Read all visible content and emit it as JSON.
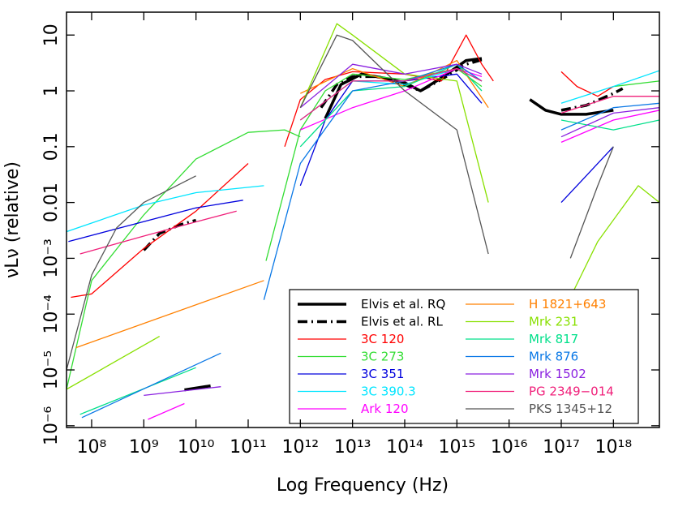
{
  "chart_data": {
    "type": "line",
    "log_x": true,
    "log_y": true,
    "x_label": "Log Frequency (Hz)",
    "y_label": "νLν (relative)",
    "xlim": [
      33000000.0,
      7.6e+18
    ],
    "ylim": [
      9.3e-07,
      25.7
    ],
    "xticks": [
      {
        "value": 100000000.0,
        "label": "10⁸"
      },
      {
        "value": 1000000000.0,
        "label": "10⁹"
      },
      {
        "value": 10000000000.0,
        "label": "10¹⁰"
      },
      {
        "value": 100000000000.0,
        "label": "10¹¹"
      },
      {
        "value": 1000000000000.0,
        "label": "10¹²"
      },
      {
        "value": 10000000000000.0,
        "label": "10¹³"
      },
      {
        "value": 100000000000000.0,
        "label": "10¹⁴"
      },
      {
        "value": 1000000000000000.0,
        "label": "10¹⁵"
      },
      {
        "value": 1e+16,
        "label": "10¹⁶"
      },
      {
        "value": 1e+17,
        "label": "10¹⁷"
      },
      {
        "value": 1e+18,
        "label": "10¹⁸"
      }
    ],
    "yticks": [
      {
        "value": 1e-06,
        "label": "10⁻⁶"
      },
      {
        "value": 1e-05,
        "label": "10⁻⁵"
      },
      {
        "value": 0.0001,
        "label": "10⁻⁴"
      },
      {
        "value": 0.001,
        "label": "10⁻³"
      },
      0.01,
      0.1,
      1,
      10
    ],
    "series": [
      {
        "name": "Elvis et al. RQ",
        "color": "#000000",
        "width": 3.5,
        "style": "solid",
        "x": [
          6000000000.0,
          19000000000.0,
          null,
          3000000000000.0,
          6000000000000.0,
          15000000000000.0,
          40000000000000.0,
          100000000000000.0,
          200000000000000.0,
          500000000000000.0,
          1500000000000000.0,
          3000000000000000.0,
          null,
          2.5e+16,
          5e+16,
          1e+17,
          3e+17,
          1e+18
        ],
        "values": [
          4.4e-06,
          5.2e-06,
          null,
          0.32,
          1.3,
          2,
          1.7,
          1.4,
          1.0,
          1.7,
          3.5,
          3.8,
          null,
          0.7,
          0.45,
          0.38,
          0.38,
          0.45
        ]
      },
      {
        "name": "Elvis et al. RL",
        "color": "#000000",
        "width": 3.5,
        "style": "dashdot",
        "x": [
          1000000000.0,
          2000000000.0,
          5000000000.0,
          10000000000.0,
          null,
          2500000000000.0,
          5000000000000.0,
          10000000000000.0,
          30000000000000.0,
          100000000000000.0,
          200000000000000.0,
          500000000000000.0,
          1500000000000000.0,
          3000000000000000.0,
          null,
          1e+17,
          3e+17,
          1e+18,
          1.5e+18
        ],
        "values": [
          0.0014,
          0.0028,
          0.004,
          0.0048,
          null,
          0.5,
          1.3,
          1.8,
          1.8,
          1.3,
          1.0,
          1.6,
          3,
          3.6,
          null,
          0.45,
          0.55,
          0.9,
          1.1
        ]
      },
      {
        "name": "3C 120",
        "color": "#ff0000",
        "width": 1.3,
        "style": "solid",
        "x": [
          40000000.0,
          100000000.0,
          1000000000.0,
          10000000000.0,
          100000000000.0,
          null,
          500000000000.0,
          1000000000000.0,
          3000000000000.0,
          10000000000000.0,
          100000000000000.0,
          500000000000000.0,
          1500000000000000.0,
          3000000000000000.0,
          5000000000000000.0,
          null,
          1e+17,
          2e+17,
          5e+17,
          1e+18
        ],
        "values": [
          0.0002,
          0.00023,
          0.0015,
          0.007,
          0.05,
          null,
          0.1,
          0.7,
          1.6,
          2.2,
          2.0,
          1.5,
          10,
          3,
          1.5,
          null,
          2.2,
          1.2,
          0.8,
          1.2
        ]
      },
      {
        "name": "3C 273",
        "color": "#33dd33",
        "width": 1.3,
        "style": "solid",
        "x": [
          33000000.0,
          100000000.0,
          1000000000.0,
          10000000000.0,
          100000000000.0,
          500000000000.0,
          1000000000000.0,
          null,
          220000000000.0,
          1000000000000.0,
          3000000000000.0,
          10000000000000.0,
          100000000000000.0,
          1000000000000000.0,
          3000000000000000.0,
          null,
          1e+18,
          7.6e+18
        ],
        "values": [
          4.5e-06,
          0.0004,
          0.006,
          0.06,
          0.18,
          0.2,
          0.15,
          null,
          0.0009,
          0.2,
          1.0,
          2.0,
          1.6,
          2.5,
          1.2,
          null,
          1.2,
          1.5
        ]
      },
      {
        "name": "3C 351",
        "color": "#0000dd",
        "width": 1.3,
        "style": "solid",
        "x": [
          36000000.0,
          10000000000.0,
          80000000000.0,
          null,
          1000000000000.0,
          3000000000000.0,
          10000000000000.0,
          100000000000000.0,
          1000000000000000.0,
          3000000000000000.0,
          null,
          1e+17,
          3e+17,
          1e+18
        ],
        "values": [
          0.002,
          0.008,
          0.011,
          null,
          0.02,
          0.3,
          1.5,
          1.5,
          2,
          0.6,
          null,
          0.01,
          0.03,
          0.1
        ]
      },
      {
        "name": "3C 390.3",
        "color": "#00e5ff",
        "width": 1.3,
        "style": "solid",
        "x": [
          33000000.0,
          1000000000.0,
          10000000000.0,
          200000000000.0,
          null,
          1000000000000.0,
          10000000000000.0,
          100000000000000.0,
          1000000000000000.0,
          3000000000000000.0,
          null,
          1e+17,
          1e+18,
          7.6e+18
        ],
        "values": [
          0.003,
          0.009,
          0.015,
          0.02,
          null,
          0.3,
          1.5,
          1.3,
          2.5,
          1.5,
          null,
          0.6,
          1.2,
          2.3
        ]
      },
      {
        "name": "Ark 120",
        "color": "#ff00ff",
        "width": 1.3,
        "style": "solid",
        "x": [
          1200000000.0,
          6000000000.0,
          null,
          1000000000000.0,
          10000000000000.0,
          100000000000000.0,
          1000000000000000.0,
          3000000000000000.0,
          null,
          1e+17,
          1e+18,
          7.6e+18
        ],
        "values": [
          1.3e-06,
          2.5e-06,
          null,
          0.2,
          0.5,
          1,
          2.5,
          1.8,
          null,
          0.12,
          0.3,
          0.45
        ]
      },
      {
        "name": "H 1821+643",
        "color": "#ff8000",
        "width": 1.3,
        "style": "solid",
        "x": [
          50000000.0,
          200000000000.0,
          null,
          1000000000000.0,
          10000000000000.0,
          100000000000000.0,
          1000000000000000.0,
          4000000000000000.0
        ],
        "values": [
          2.5e-05,
          0.0004,
          null,
          0.9,
          2.5,
          1.2,
          3.5,
          0.5
        ]
      },
      {
        "name": "Mrk 231",
        "color": "#88e000",
        "width": 1.3,
        "style": "solid",
        "x": [
          33000000.0,
          2000000000.0,
          null,
          1000000000000.0,
          5000000000000.0,
          10000000000000.0,
          100000000000000.0,
          1000000000000000.0,
          4000000000000000.0,
          null,
          1.5e+17,
          5e+17,
          3e+18,
          7.6e+18
        ],
        "values": [
          4.5e-06,
          4e-05,
          null,
          0.5,
          16,
          10,
          2,
          1.5,
          0.01,
          null,
          0.0002,
          0.002,
          0.02,
          0.01
        ]
      },
      {
        "name": "Mrk 817",
        "color": "#00e08a",
        "width": 1.3,
        "style": "solid",
        "x": [
          60000000.0,
          10000000000.0,
          null,
          1000000000000.0,
          10000000000000.0,
          100000000000000.0,
          1000000000000000.0,
          3000000000000000.0,
          null,
          1e+17,
          1e+18,
          7.6e+18
        ],
        "values": [
          1.6e-06,
          1.1e-05,
          null,
          0.1,
          1,
          1.2,
          3,
          1,
          null,
          0.3,
          0.2,
          0.3
        ]
      },
      {
        "name": "Mrk 876",
        "color": "#0a78e6",
        "width": 1.3,
        "style": "solid",
        "x": [
          65000000.0,
          30000000000.0,
          null,
          200000000000.0,
          1000000000000.0,
          10000000000000.0,
          100000000000000.0,
          1000000000000000.0,
          3000000000000000.0,
          null,
          1e+17,
          1e+18,
          7.6e+18
        ],
        "values": [
          1.4e-06,
          2e-05,
          null,
          0.00018,
          0.05,
          1,
          1.5,
          3,
          1.5,
          null,
          0.2,
          0.5,
          0.6
        ]
      },
      {
        "name": "Mrk 1502",
        "color": "#8a20e0",
        "width": 1.3,
        "style": "solid",
        "x": [
          1000000000.0,
          30000000000.0,
          null,
          1000000000000.0,
          10000000000000.0,
          100000000000000.0,
          1000000000000000.0,
          3000000000000000.0,
          null,
          1e+17,
          1e+18,
          7.6e+18
        ],
        "values": [
          3.5e-06,
          5e-06,
          null,
          0.5,
          3,
          2,
          3,
          2,
          null,
          0.15,
          0.4,
          0.5
        ]
      },
      {
        "name": "PG 2349−014",
        "color": "#f0207a",
        "width": 1.3,
        "style": "solid",
        "x": [
          60000000.0,
          1000000000.0,
          10000000000.0,
          60000000000.0,
          null,
          1000000000000.0,
          10000000000000.0,
          100000000000000.0,
          1000000000000000.0,
          3000000000000000.0,
          null,
          1e+17,
          1e+18,
          7.6e+18
        ],
        "values": [
          0.0012,
          0.0025,
          0.0045,
          0.007,
          null,
          0.3,
          1.5,
          1.5,
          2.5,
          1.5,
          null,
          0.4,
          0.8,
          0.8
        ]
      },
      {
        "name": "PKS 1345+12",
        "color": "#555555",
        "width": 1.3,
        "style": "solid",
        "x": [
          33000000.0,
          100000000.0,
          300000000.0,
          1000000000.0,
          10000000000.0,
          null,
          1000000000000.0,
          5000000000000.0,
          10000000000000.0,
          100000000000000.0,
          1000000000000000.0,
          4000000000000000.0,
          null,
          1.5e+17,
          5e+17,
          1e+18
        ],
        "values": [
          1e-05,
          0.0005,
          0.0035,
          0.01,
          0.03,
          null,
          0.5,
          10,
          8,
          1,
          0.2,
          0.0012,
          null,
          0.001,
          0.02,
          0.1
        ]
      }
    ]
  }
}
